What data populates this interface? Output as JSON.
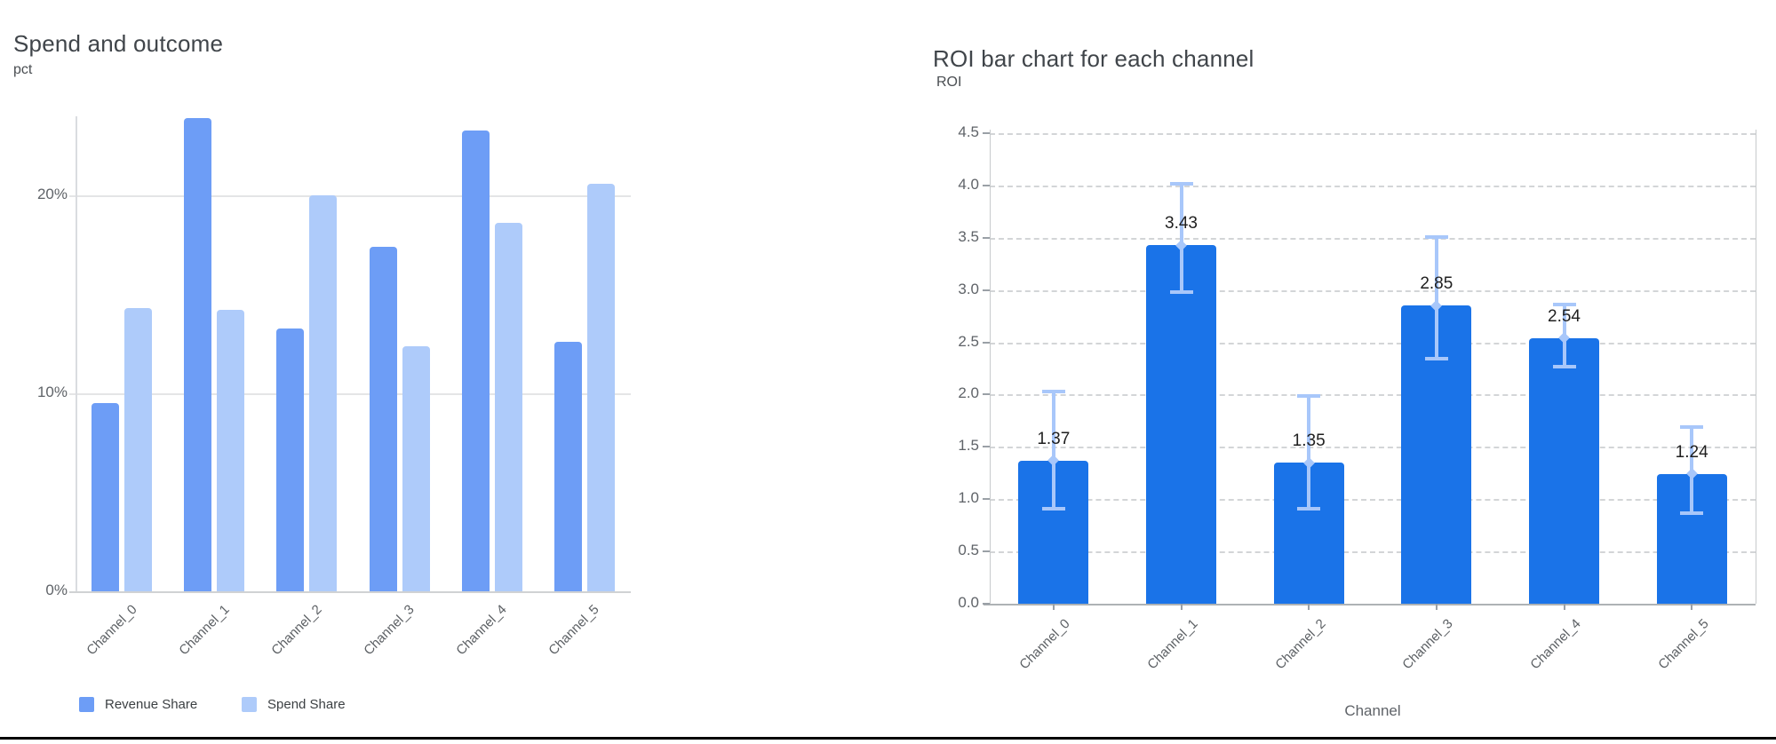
{
  "page": {
    "background": "#ffffff",
    "bottom_rule_color": "#000000"
  },
  "chart_data": [
    {
      "type": "bar",
      "title": "Spend and outcome",
      "ylabel": "pct",
      "xlabel": "",
      "categories": [
        "Channel_0",
        "Channel_1",
        "Channel_2",
        "Channel_3",
        "Channel_4",
        "Channel_5"
      ],
      "series": [
        {
          "name": "Revenue Share",
          "color": "#6d9df6",
          "values": [
            9.5,
            23.9,
            13.3,
            17.4,
            23.3,
            12.6
          ]
        },
        {
          "name": "Spend Share",
          "color": "#aecbfa",
          "values": [
            14.3,
            14.2,
            20.0,
            12.4,
            18.6,
            20.6
          ]
        }
      ],
      "y_ticks": [
        {
          "v": 0,
          "label": "0%"
        },
        {
          "v": 10,
          "label": "10%"
        },
        {
          "v": 20,
          "label": "20%"
        }
      ],
      "ylim": [
        0,
        24
      ],
      "grid": "solid",
      "legend_position": "bottom-left"
    },
    {
      "type": "bar",
      "title": "ROI bar chart for each channel",
      "ylabel": "ROI",
      "xlabel": "Channel",
      "categories": [
        "Channel_0",
        "Channel_1",
        "Channel_2",
        "Channel_3",
        "Channel_4",
        "Channel_5"
      ],
      "series": [
        {
          "name": "ROI",
          "color": "#1a73e8",
          "values": [
            1.37,
            3.43,
            1.35,
            2.85,
            2.54,
            1.24
          ]
        }
      ],
      "bar_value_labels": [
        "1.37",
        "3.43",
        "1.35",
        "2.85",
        "2.54",
        "1.24"
      ],
      "error_bars": {
        "color": "#a8c7fa",
        "ranges": [
          [
            0.89,
            2.05
          ],
          [
            2.96,
            4.03
          ],
          [
            0.89,
            2.0
          ],
          [
            2.33,
            3.52
          ],
          [
            2.25,
            2.88
          ],
          [
            0.85,
            1.71
          ]
        ]
      },
      "y_ticks": [
        {
          "v": 0,
          "label": "0.0"
        },
        {
          "v": 0.5,
          "label": "0.5"
        },
        {
          "v": 1,
          "label": "1.0"
        },
        {
          "v": 1.5,
          "label": "1.5"
        },
        {
          "v": 2,
          "label": "2.0"
        },
        {
          "v": 2.5,
          "label": "2.5"
        },
        {
          "v": 3,
          "label": "3.0"
        },
        {
          "v": 3.5,
          "label": "3.5"
        },
        {
          "v": 4,
          "label": "4.0"
        },
        {
          "v": 4.5,
          "label": "4.5"
        }
      ],
      "ylim": [
        0,
        4.5
      ],
      "grid": "dashed",
      "legend_position": "none"
    }
  ]
}
